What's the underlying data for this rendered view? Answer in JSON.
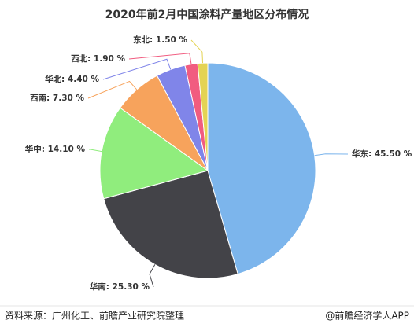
{
  "chart_data": {
    "type": "pie",
    "title": "2020年前2月中国涂料产量地区分布情况",
    "values": [
      45.5,
      25.3,
      14.1,
      7.3,
      4.4,
      1.9,
      1.5
    ],
    "value_labels": [
      "华东: 45.50 %",
      "华南: 25.30 %",
      "华中: 14.10 %",
      "西南: 7.30 %",
      "华北: 4.40 %",
      "西北: 1.90 %",
      "东北: 1.50 %"
    ],
    "colors": [
      "#7cb5ec",
      "#434348",
      "#90ed7d",
      "#f7a35c",
      "#8085e9",
      "#f15c80",
      "#e4d354"
    ]
  },
  "footer": {
    "source": "资料来源：广州化工、前瞻产业研究院整理",
    "credit": "@前瞻经济学人APP"
  }
}
